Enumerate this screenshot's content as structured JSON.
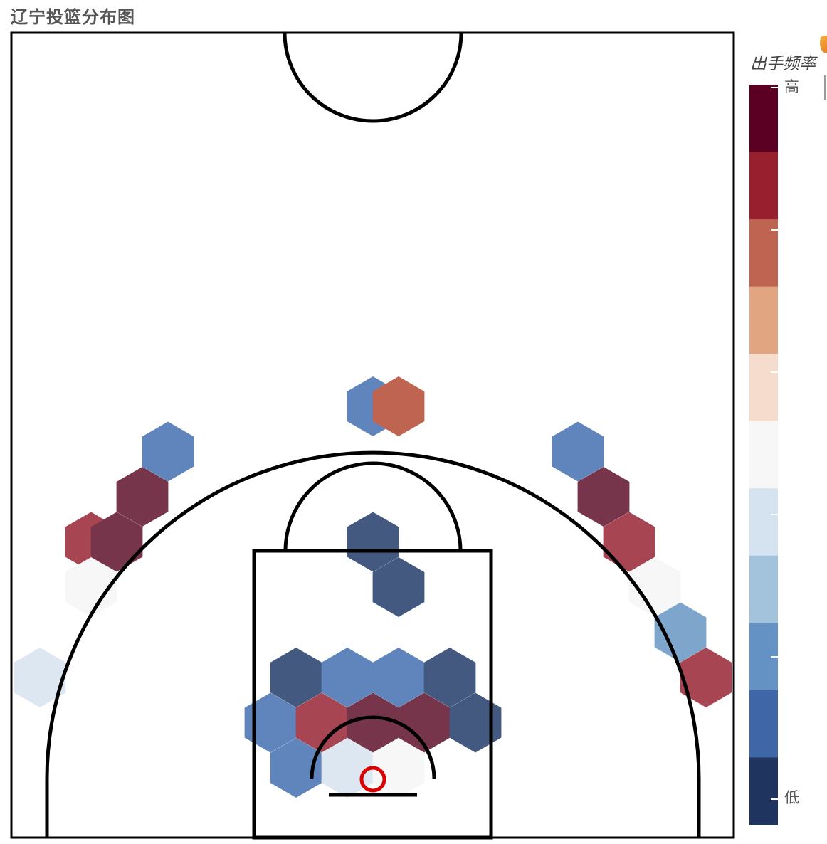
{
  "title": "辽宁投篮分布图",
  "chart_data": {
    "type": "hexbin",
    "title": "辽宁投篮分布图",
    "legend": {
      "title": "出手频率",
      "high_label": "高",
      "low_label": "低",
      "colors": [
        "#1f3560",
        "#3f67a7",
        "#6592c4",
        "#a3c3dd",
        "#d4e3ef",
        "#f7f7f7",
        "#f6dccd",
        "#e2a582",
        "#bf6450",
        "#971f2e",
        "#5b0022"
      ]
    },
    "hexagons": [
      {
        "col": 0,
        "row": 0,
        "color": "#6084bc"
      },
      {
        "col": 1,
        "row": 0,
        "color": "#bf6450"
      },
      {
        "col": -8,
        "row": 1,
        "color": "#6084bc"
      },
      {
        "col": 8,
        "row": 1,
        "color": "#6084bc"
      },
      {
        "col": -9,
        "row": 2,
        "color": "#76354b"
      },
      {
        "col": 9,
        "row": 2,
        "color": "#76354b"
      },
      {
        "col": -11,
        "row": 3,
        "color": "#a84552"
      },
      {
        "col": -10,
        "row": 3,
        "color": "#76354b"
      },
      {
        "col": 0,
        "row": 3,
        "color": "#435980"
      },
      {
        "col": 10,
        "row": 3,
        "color": "#a84552"
      },
      {
        "col": -11,
        "row": 4,
        "color": "#f7f7f7"
      },
      {
        "col": 1,
        "row": 4,
        "color": "#435980"
      },
      {
        "col": 11,
        "row": 4,
        "color": "#f7f7f7"
      },
      {
        "col": 12,
        "row": 5,
        "color": "#7ea6cc"
      },
      {
        "col": -13,
        "row": 6,
        "color": "#dce7f1"
      },
      {
        "col": -3,
        "row": 6,
        "color": "#435980"
      },
      {
        "col": -1,
        "row": 6,
        "color": "#6084bc"
      },
      {
        "col": 1,
        "row": 6,
        "color": "#6084bc"
      },
      {
        "col": 3,
        "row": 6,
        "color": "#435980"
      },
      {
        "col": 13,
        "row": 6,
        "color": "#a84552"
      },
      {
        "col": -4,
        "row": 7,
        "color": "#6084bc"
      },
      {
        "col": -2,
        "row": 7,
        "color": "#a84552"
      },
      {
        "col": 0,
        "row": 7,
        "color": "#76354b"
      },
      {
        "col": 2,
        "row": 7,
        "color": "#76354b"
      },
      {
        "col": 4,
        "row": 7,
        "color": "#435980"
      },
      {
        "col": -3,
        "row": 8,
        "color": "#6084bc"
      },
      {
        "col": -1,
        "row": 8,
        "color": "#dce7f1"
      },
      {
        "col": 1,
        "row": 8,
        "color": "#f7f7f7"
      }
    ]
  }
}
